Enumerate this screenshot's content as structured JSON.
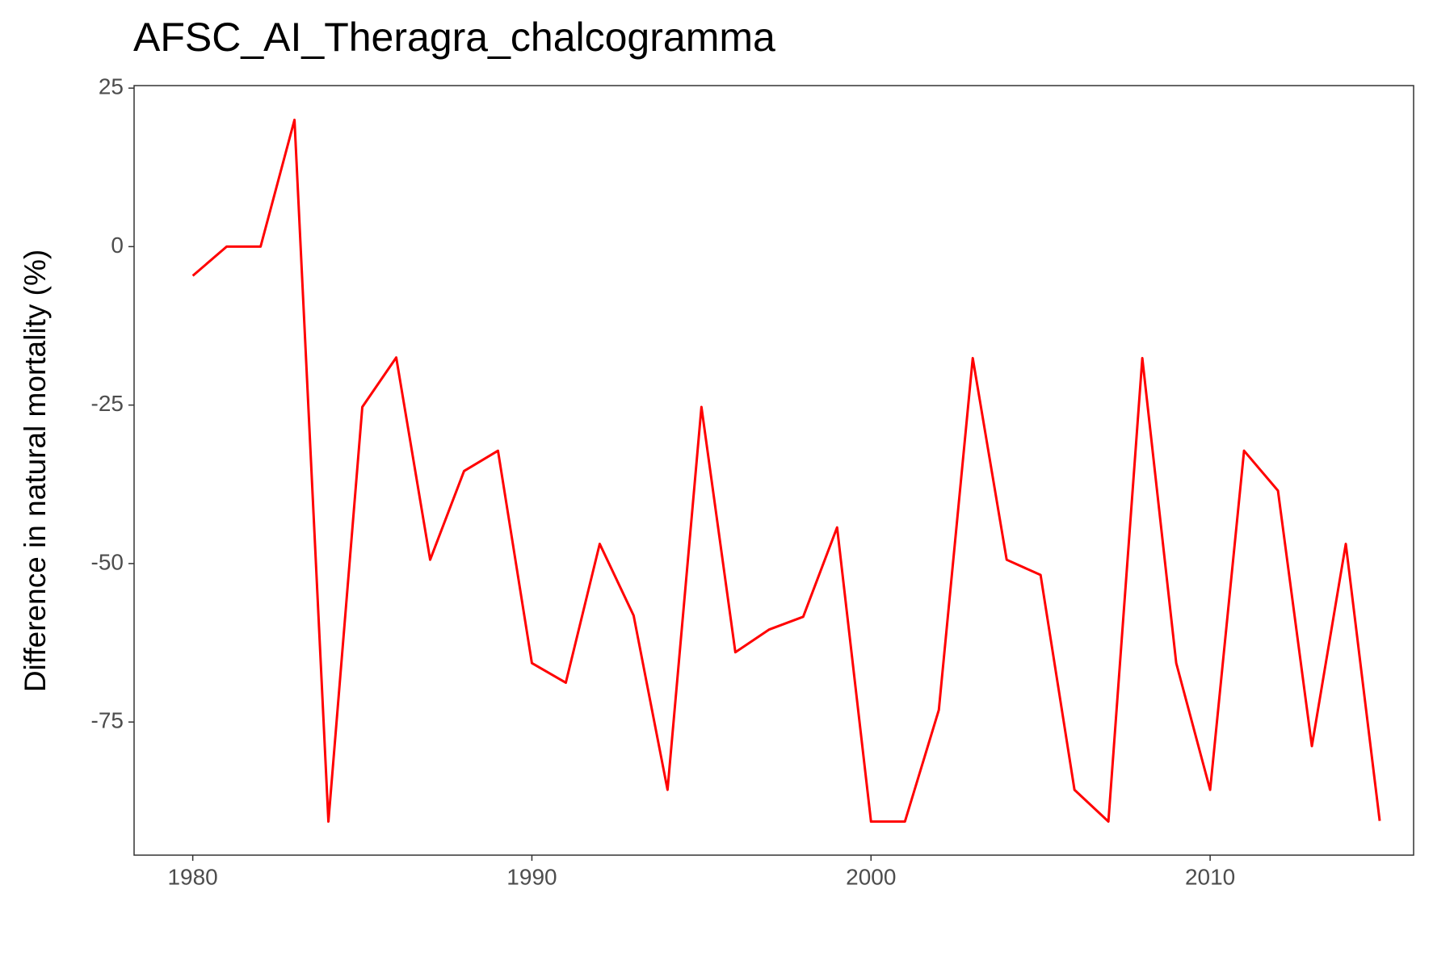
{
  "chart_data": {
    "type": "line",
    "title": "AFSC_AI_Theragra_chalcogramma",
    "y_label": "Difference in natural mortality (%)",
    "x": [
      1980,
      1981,
      1982,
      1983,
      1984,
      1985,
      1986,
      1987,
      1988,
      1989,
      1990,
      1991,
      1992,
      1993,
      1994,
      1995,
      1996,
      1997,
      1998,
      1999,
      2000,
      2001,
      2002,
      2003,
      2004,
      2005,
      2006,
      2007,
      2008,
      2009,
      2010,
      2011,
      2012,
      2013,
      2014,
      2015
    ],
    "series": [
      {
        "color": "#ff0000",
        "values": [
          -4.6,
          0,
          0,
          20,
          -90.7,
          -25.3,
          -17.5,
          -49.4,
          -35.4,
          -32.2,
          -65.7,
          -68.8,
          -46.9,
          -58.2,
          -85.7,
          -25.3,
          -64.0,
          -60.4,
          -58.4,
          -44.3,
          -90.7,
          -90.7,
          -73.1,
          -17.6,
          -49.4,
          -51.8,
          -85.7,
          -90.7,
          -17.6,
          -65.7,
          -85.7,
          -32.2,
          -38.5,
          -78.8,
          -46.9,
          -90.6
        ]
      }
    ],
    "xlim": [
      1978.27,
      2016
    ],
    "ylim": [
      -96,
      25.4
    ],
    "xticks": [
      1980,
      1990,
      2000,
      2010
    ],
    "yticks": [
      25,
      0,
      -25,
      -50,
      -75
    ],
    "grid": false
  }
}
